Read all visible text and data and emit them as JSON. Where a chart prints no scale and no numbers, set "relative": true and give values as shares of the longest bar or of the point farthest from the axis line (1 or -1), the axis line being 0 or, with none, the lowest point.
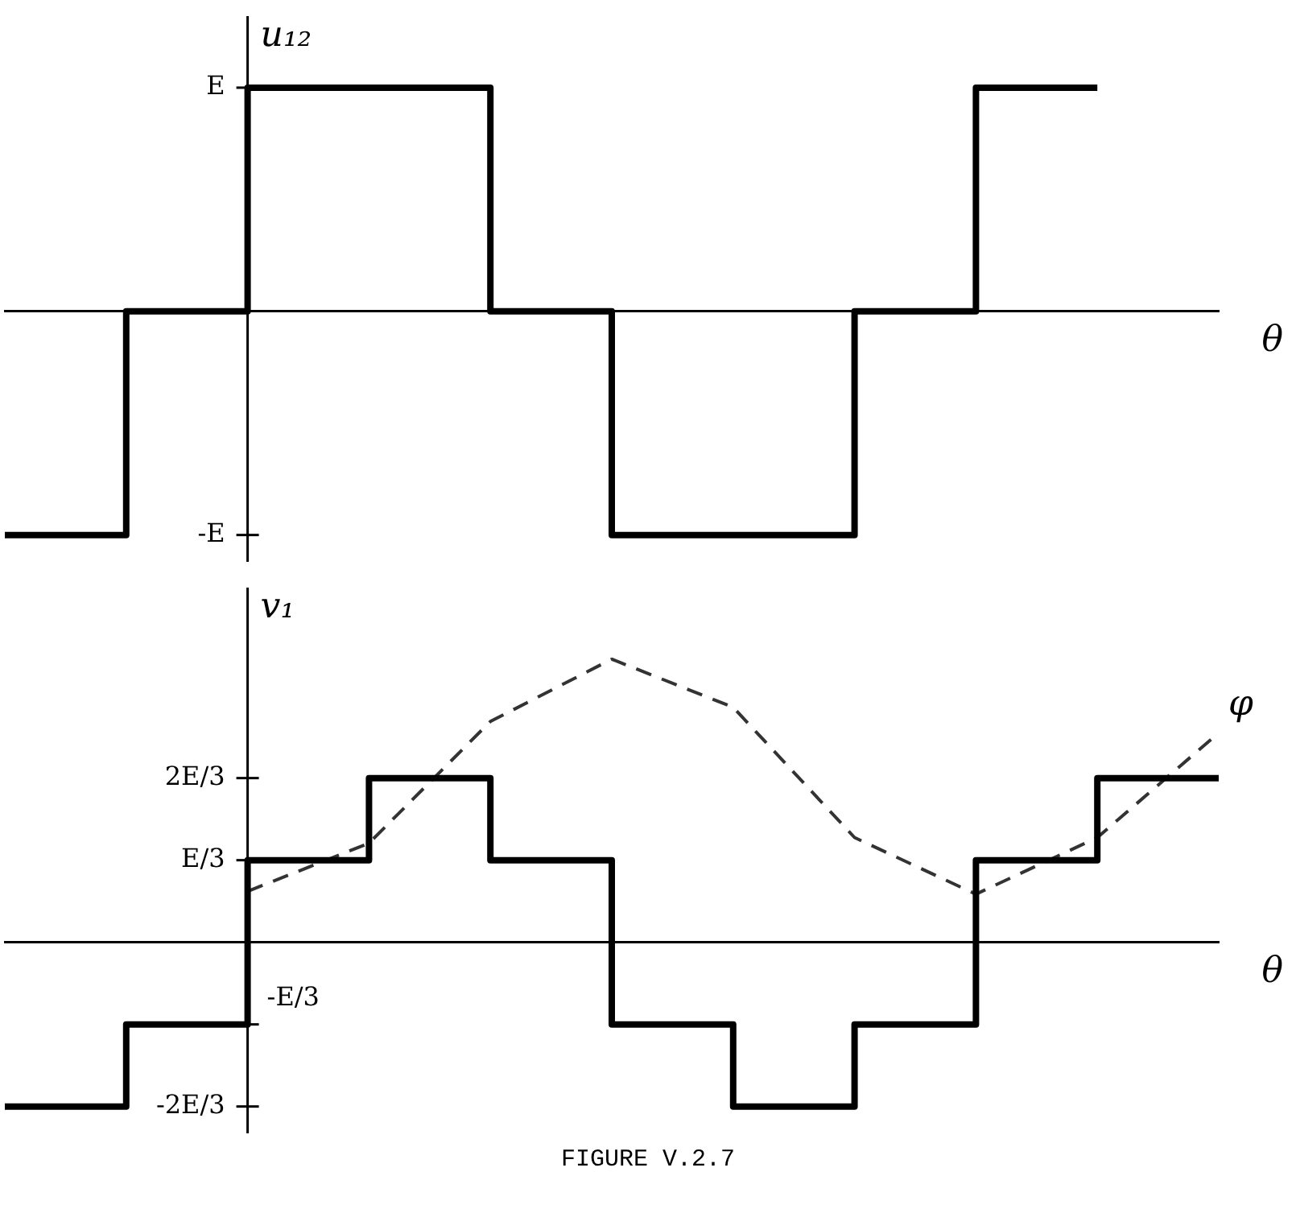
{
  "chart_data": [
    {
      "type": "step",
      "relative": true,
      "ylabel": "u₁₂",
      "xlabel": "θ",
      "categories": [
        null,
        null,
        null,
        null,
        null,
        null,
        null,
        null,
        null,
        null,
        null
      ],
      "series": [
        {
          "color": "#000000",
          "values": [
            -1,
            0,
            1,
            1,
            0,
            -1,
            -1,
            0,
            1,
            1,
            null
          ]
        }
      ],
      "annotations": [
        "E",
        "-E"
      ],
      "grid": false,
      "legend": false
    },
    {
      "type": "step",
      "relative": true,
      "ylabel": "v₁",
      "xlabel": "θ",
      "categories": [
        null,
        null,
        null,
        null,
        null,
        null,
        null,
        null,
        null,
        null,
        null
      ],
      "series": [
        {
          "color": "#000000",
          "values": [
            -0.58,
            -0.29,
            0.29,
            0.58,
            0.29,
            -0.29,
            -0.58,
            -0.29,
            0.29,
            0.58,
            0.58
          ]
        },
        {
          "type": "line",
          "name": "φ",
          "color": "#333333",
          "line_style": "dashed",
          "values": [
            null,
            null,
            0.18,
            0.35,
            0.78,
            1,
            0.83,
            0.37,
            0.17,
            0.37,
            0.74
          ]
        }
      ],
      "annotations": [
        "2E/3",
        "E/3",
        "-E/3",
        "-2E/3",
        "FIGURE V.2.7"
      ],
      "grid": false,
      "legend": false
    }
  ]
}
